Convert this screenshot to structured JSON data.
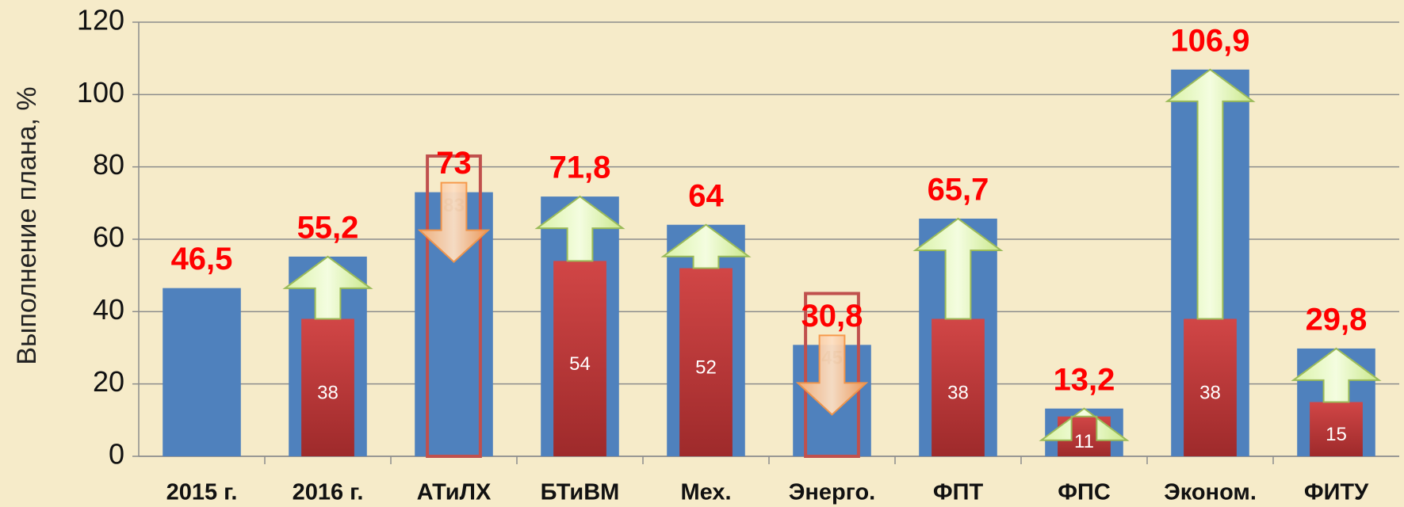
{
  "chart_data": {
    "type": "bar",
    "y_label": "Выполнение плана, %",
    "categories": [
      "2015 г.",
      "2016 г.",
      "АТиЛХ",
      "БТиВМ",
      "Мех.",
      "Энерго.",
      "ФПТ",
      "ФПС",
      "Эконом.",
      "ФИТУ"
    ],
    "series": [
      {
        "color": "#4f81bd",
        "values": [
          46.5,
          55.2,
          73,
          71.8,
          64,
          30.8,
          65.7,
          13.2,
          106.9,
          29.8
        ],
        "value_labels": [
          "46,5",
          "55,2",
          "73",
          "71,8",
          "64",
          "30,8",
          "65,7",
          "13,2",
          "106,9",
          "29,8"
        ]
      },
      {
        "color": "#c0393b",
        "values": [
          null,
          38,
          null,
          54,
          52,
          null,
          38,
          11,
          38,
          15
        ]
      },
      {
        "color": "#c0504d",
        "values": [
          null,
          null,
          83,
          null,
          null,
          45,
          null,
          null,
          null,
          null
        ]
      }
    ],
    "ylim": [
      0,
      120
    ],
    "yticks": [
      0,
      20,
      40,
      60,
      80,
      100,
      120
    ],
    "grid": true
  }
}
